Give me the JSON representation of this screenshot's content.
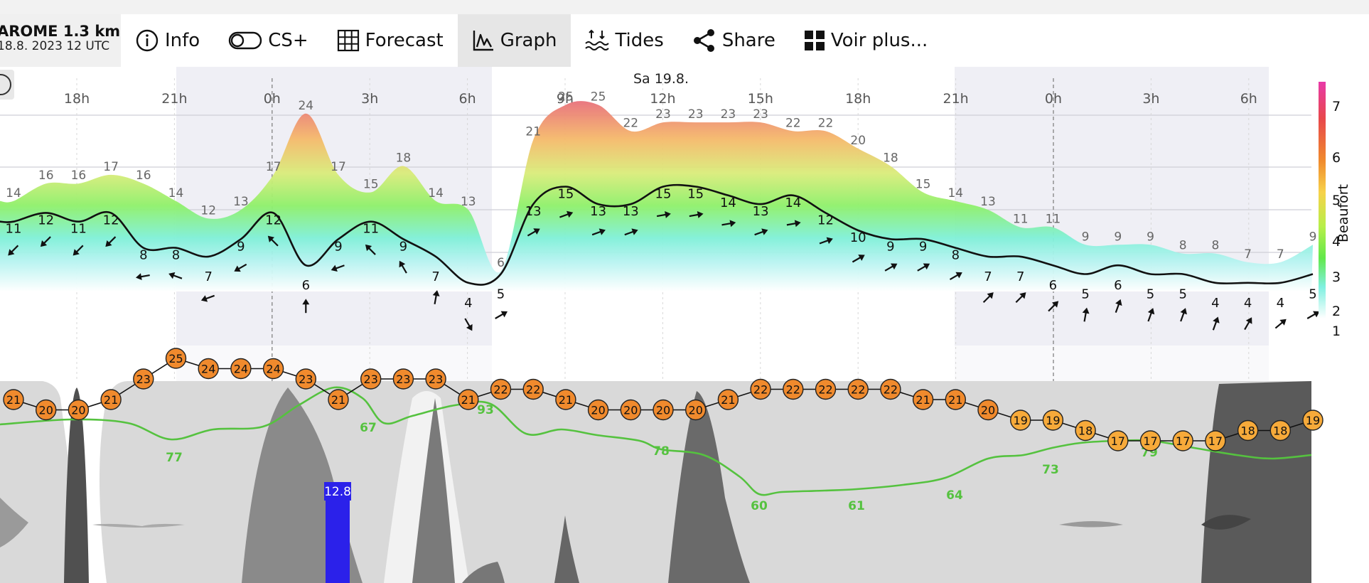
{
  "model": {
    "name": "AROME 1.3 km",
    "run": "18.8. 2023 12 UTC"
  },
  "toolbar": [
    {
      "id": "info",
      "label": "Info",
      "icon": "info-icon",
      "active": false
    },
    {
      "id": "csplus",
      "label": "CS+",
      "icon": "toggle-icon",
      "active": false
    },
    {
      "id": "forecast",
      "label": "Forecast",
      "icon": "grid-icon",
      "active": false
    },
    {
      "id": "graph",
      "label": "Graph",
      "icon": "chart-icon",
      "active": true
    },
    {
      "id": "tides",
      "label": "Tides",
      "icon": "waves-icon",
      "active": false
    },
    {
      "id": "share",
      "label": "Share",
      "icon": "share-icon",
      "active": false
    },
    {
      "id": "more",
      "label": "Voir plus...",
      "icon": "apps-icon",
      "active": false
    }
  ],
  "timeline": {
    "day_label": "Sa 19.8.",
    "hour_ticks": [
      "18h",
      "21h",
      "0h",
      "3h",
      "6h",
      "9h",
      "12h",
      "15h",
      "18h",
      "21h",
      "0h",
      "3h",
      "6h"
    ]
  },
  "beaufort_scale": {
    "title": "Beaufort",
    "labels": [
      "7",
      "6",
      "5",
      "4",
      "3",
      "2",
      "1"
    ]
  },
  "wind": {
    "gusts": [
      "14",
      "16",
      "16",
      "17",
      "16",
      "14",
      "12",
      "13",
      "17",
      "24",
      "17",
      "15",
      "18",
      "14",
      "13",
      "6",
      "21",
      "25",
      "25",
      "22",
      "23",
      "23",
      "23",
      "23",
      "22",
      "22",
      "20",
      "18",
      "15",
      "14",
      "13",
      "11",
      "11",
      "9",
      "9",
      "9",
      "8",
      "8",
      "7",
      "7",
      "9"
    ],
    "speeds": [
      "11",
      "12",
      "11",
      "12",
      "8",
      "8",
      "7",
      "9",
      "12",
      "6",
      "9",
      "11",
      "9",
      "7",
      "4",
      "5",
      "13",
      "15",
      "13",
      "13",
      "15",
      "15",
      "14",
      "13",
      "14",
      "12",
      "10",
      "9",
      "9",
      "8",
      "7",
      "7",
      "6",
      "5",
      "6",
      "5",
      "5",
      "4",
      "4",
      "4",
      "5"
    ],
    "directions_deg": [
      225,
      225,
      225,
      225,
      260,
      290,
      250,
      240,
      315,
      0,
      250,
      315,
      330,
      10,
      150,
      60,
      60,
      70,
      70,
      70,
      80,
      80,
      80,
      70,
      80,
      70,
      60,
      60,
      60,
      60,
      45,
      45,
      45,
      10,
      20,
      20,
      20,
      20,
      30,
      50,
      60
    ]
  },
  "temperature": {
    "values": [
      "21",
      "20",
      "20",
      "21",
      "23",
      "25",
      "24",
      "24",
      "24",
      "23",
      "21",
      "23",
      "23",
      "23",
      "21",
      "22",
      "22",
      "21",
      "20",
      "20",
      "20",
      "20",
      "21",
      "22",
      "22",
      "22",
      "22",
      "22",
      "21",
      "21",
      "20",
      "19",
      "19",
      "18",
      "17",
      "17",
      "17",
      "17",
      "18",
      "18",
      "19"
    ]
  },
  "humidity_labels": [
    "77",
    "67",
    "93",
    "78",
    "60",
    "61",
    "64",
    "73",
    "79"
  ],
  "precipitation": {
    "label": "12.8"
  },
  "colors": {
    "wind_line": "#111111",
    "humidity_line": "#55c23f",
    "temp_marker_warm": "#f08a2d",
    "temp_marker_mild": "#f7aa3a",
    "precip_bar": "#2b21ea",
    "night_shade": "#e9e9f2"
  }
}
